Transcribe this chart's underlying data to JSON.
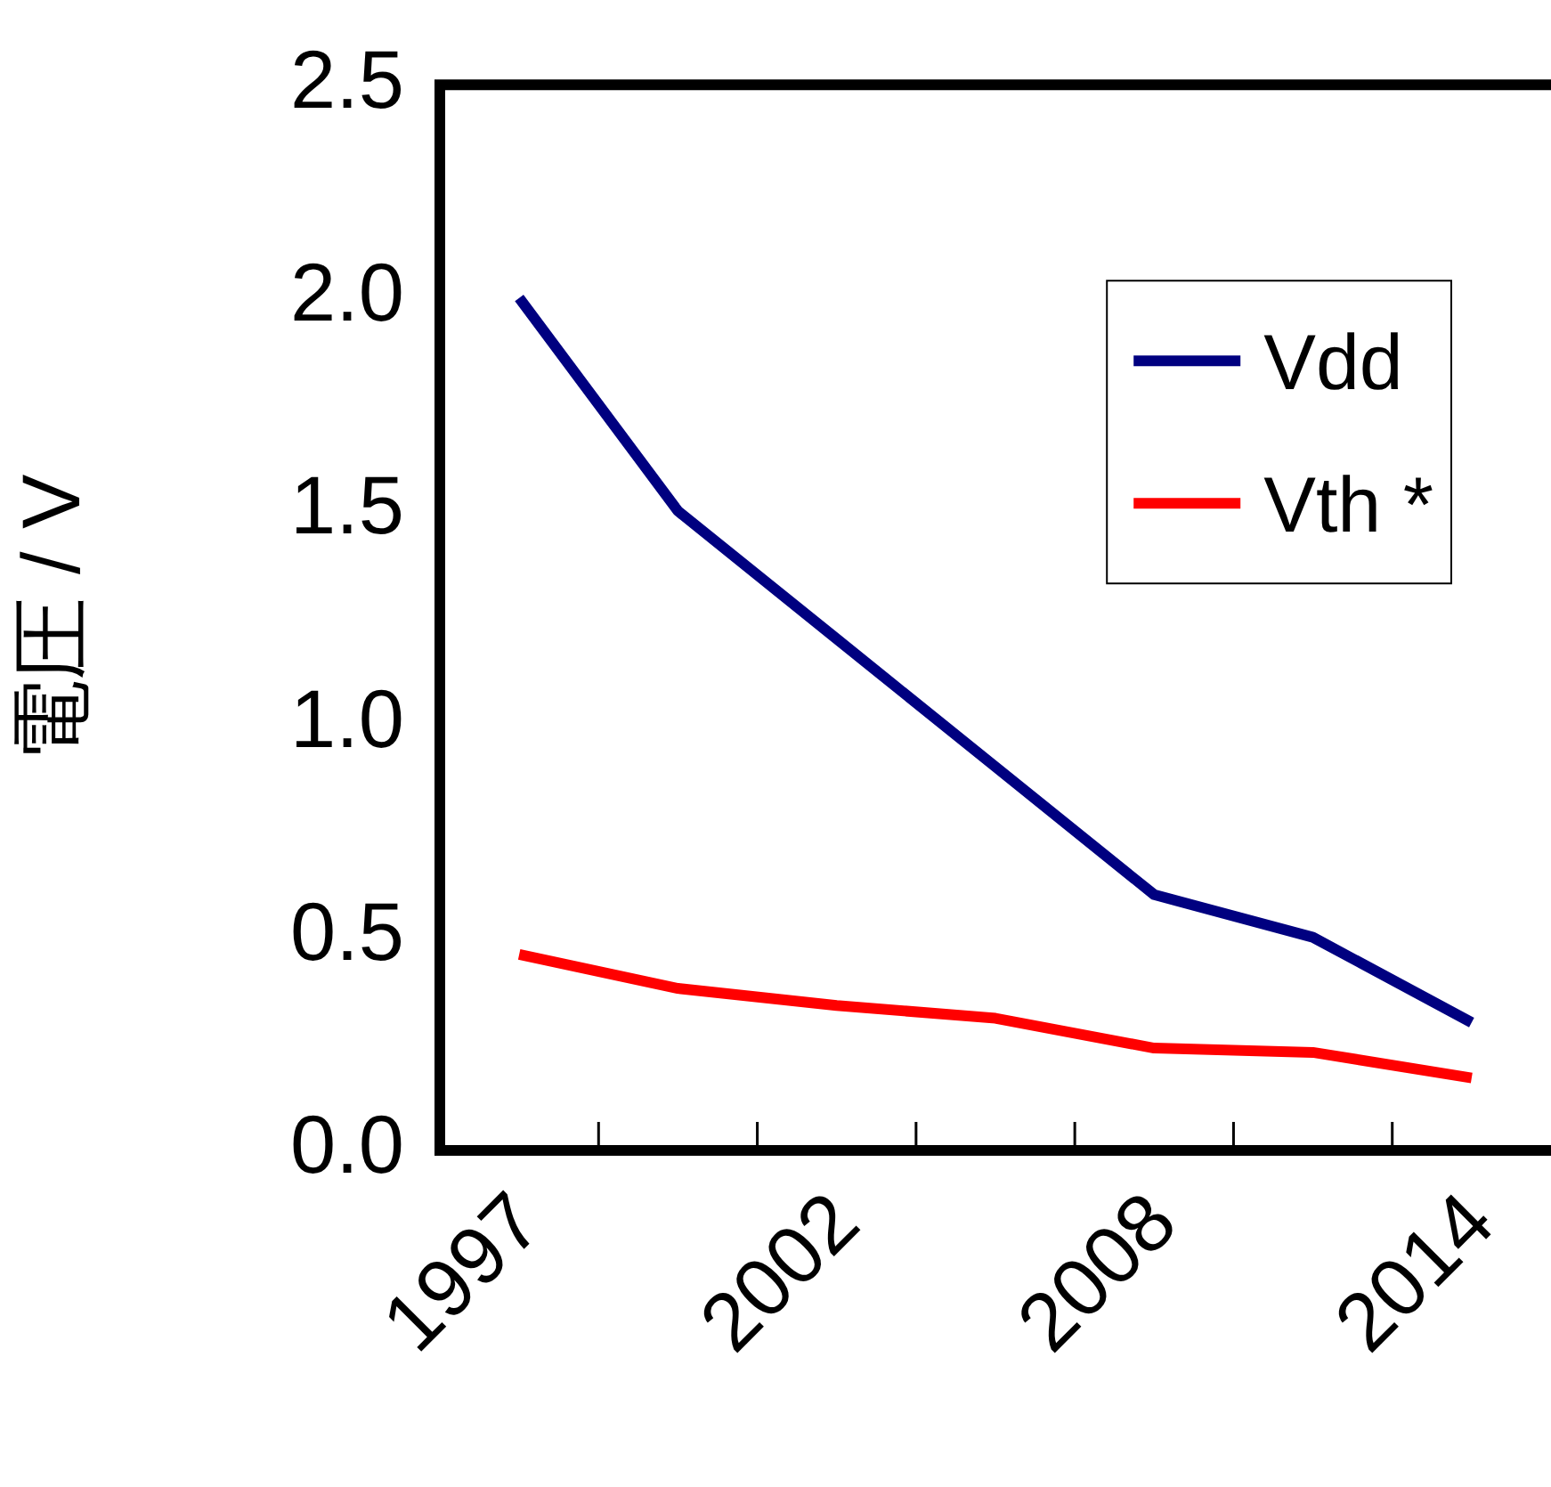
{
  "chart_data": {
    "type": "line",
    "ylabel": "電圧 / V",
    "categories": [
      "1997",
      null,
      "2002",
      null,
      "2008",
      null,
      "2014"
    ],
    "ylim": [
      0,
      2.5
    ],
    "yticks": [
      {
        "value": 0,
        "label": "0.0"
      },
      {
        "value": 0.5,
        "label": "0.5"
      },
      {
        "value": 1,
        "label": "1.0"
      },
      {
        "value": 1.5,
        "label": "1.5"
      },
      {
        "value": 2,
        "label": "2.0"
      },
      {
        "value": 2.5,
        "label": "2.5"
      }
    ],
    "series": [
      {
        "name": "Vdd",
        "color": "#000080",
        "values": [
          2.0,
          1.5,
          1.2,
          0.9,
          0.6,
          0.5,
          0.3
        ]
      },
      {
        "name": "Vth *",
        "color": "#ff0000",
        "values": [
          0.46,
          0.38,
          0.34,
          0.31,
          0.24,
          0.23,
          0.17
        ]
      }
    ],
    "grid": false,
    "legend": "top right",
    "marker": "none",
    "line_style": "solid"
  }
}
